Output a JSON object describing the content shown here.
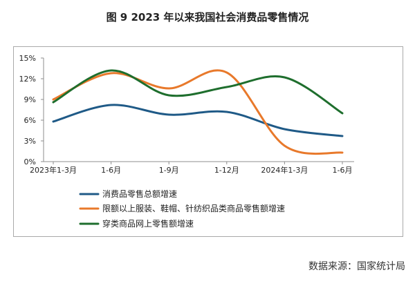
{
  "title": "图 9    2023 年以来我国社会消费品零售情况",
  "source": "数据来源：国家统计局",
  "chart_data": {
    "type": "line",
    "categories": [
      "2023年1-3月",
      "1-6月",
      "1-9月",
      "1-12月",
      "2024年1-3月",
      "1-6月"
    ],
    "ylim": [
      0,
      15
    ],
    "yticks": [
      "0%",
      "3%",
      "6%",
      "9%",
      "12%",
      "15%"
    ],
    "grid": false,
    "legend_position": "bottom",
    "series": [
      {
        "name": "消费品零售总额增速",
        "color": "#1f5a87",
        "values": [
          5.8,
          8.2,
          6.8,
          7.2,
          4.7,
          3.7
        ]
      },
      {
        "name": "限额以上服装、鞋帽、针纺织品类商品零售额增速",
        "color": "#e8792b",
        "values": [
          9.0,
          12.8,
          10.6,
          12.9,
          2.3,
          1.3
        ]
      },
      {
        "name": "穿类商品网上零售额增速",
        "color": "#1e6e2d",
        "values": [
          8.6,
          13.2,
          9.6,
          10.8,
          12.2,
          7.0
        ]
      }
    ]
  }
}
